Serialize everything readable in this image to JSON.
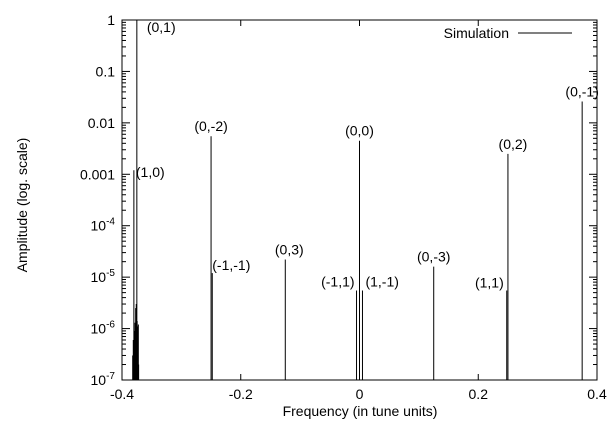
{
  "chart_data": {
    "type": "line",
    "xlabel": "Frequency (in tune units)",
    "ylabel": "Amplitude (log. scale)",
    "xlim": [
      -0.4,
      0.4
    ],
    "ylim": [
      1e-07,
      1
    ],
    "y_scale": "log",
    "x_ticks": [
      {
        "v": -0.4,
        "label": "-0.4"
      },
      {
        "v": -0.2,
        "label": "-0.2"
      },
      {
        "v": 0,
        "label": "0"
      },
      {
        "v": 0.2,
        "label": "0.2"
      },
      {
        "v": 0.4,
        "label": "0.4"
      }
    ],
    "y_ticks": [
      {
        "v": 1,
        "label": "1",
        "base": "",
        "exp": ""
      },
      {
        "v": 0.1,
        "label": "0.1",
        "base": "",
        "exp": ""
      },
      {
        "v": 0.01,
        "label": "0.01",
        "base": "",
        "exp": ""
      },
      {
        "v": 0.001,
        "label": "0.001",
        "base": "",
        "exp": ""
      },
      {
        "v": 0.0001,
        "label": "",
        "base": "10",
        "exp": "-4"
      },
      {
        "v": 1e-05,
        "label": "",
        "base": "10",
        "exp": "-5"
      },
      {
        "v": 1e-06,
        "label": "",
        "base": "10",
        "exp": "-6"
      },
      {
        "v": 1e-07,
        "label": "",
        "base": "10",
        "exp": "-7"
      }
    ],
    "legend": {
      "entry": "Simulation",
      "position": "top-right"
    },
    "grid": false,
    "series": [
      {
        "name": "Simulation",
        "color": "#000000",
        "peaks": [
          {
            "x": -0.375,
            "y": 1.0,
            "label": "(0,1)"
          },
          {
            "x": -0.38,
            "y": 0.0012,
            "label": "(1,0)"
          },
          {
            "x": -0.25,
            "y": 0.0055,
            "label": "(0,-2)"
          },
          {
            "x": -0.248,
            "y": 1.2e-05,
            "label": "(-1,-1)"
          },
          {
            "x": -0.125,
            "y": 2.2e-05,
            "label": "(0,3)"
          },
          {
            "x": -0.005,
            "y": 5.5e-06,
            "label": "(-1,1)"
          },
          {
            "x": 0.0,
            "y": 0.0045,
            "label": "(0,0)"
          },
          {
            "x": 0.005,
            "y": 5.5e-06,
            "label": "(1,-1)"
          },
          {
            "x": 0.125,
            "y": 1.6e-05,
            "label": "(0,-3)"
          },
          {
            "x": 0.248,
            "y": 5.5e-06,
            "label": "(1,1)"
          },
          {
            "x": 0.25,
            "y": 0.0025,
            "label": "(0,2)"
          },
          {
            "x": 0.375,
            "y": 0.026,
            "label": "(0,-1)"
          }
        ],
        "noise": [
          {
            "x": -0.382,
            "y": 3e-07
          },
          {
            "x": -0.381,
            "y": 6e-07
          },
          {
            "x": -0.3795,
            "y": 5e-07
          },
          {
            "x": -0.379,
            "y": 9e-07
          },
          {
            "x": -0.3785,
            "y": 4e-07
          },
          {
            "x": -0.378,
            "y": 1.3e-06
          },
          {
            "x": -0.3775,
            "y": 7e-07
          },
          {
            "x": -0.377,
            "y": 2.5e-06
          },
          {
            "x": -0.3765,
            "y": 8e-07
          },
          {
            "x": -0.376,
            "y": 3e-06
          },
          {
            "x": -0.3755,
            "y": 6e-07
          },
          {
            "x": -0.3745,
            "y": 1.4e-06
          },
          {
            "x": -0.374,
            "y": 5e-07
          },
          {
            "x": -0.3735,
            "y": 1.1e-06
          },
          {
            "x": -0.373,
            "y": 3e-07
          },
          {
            "x": -0.3725,
            "y": 1.2e-06
          },
          {
            "x": -0.372,
            "y": 2e-07
          }
        ]
      }
    ]
  }
}
